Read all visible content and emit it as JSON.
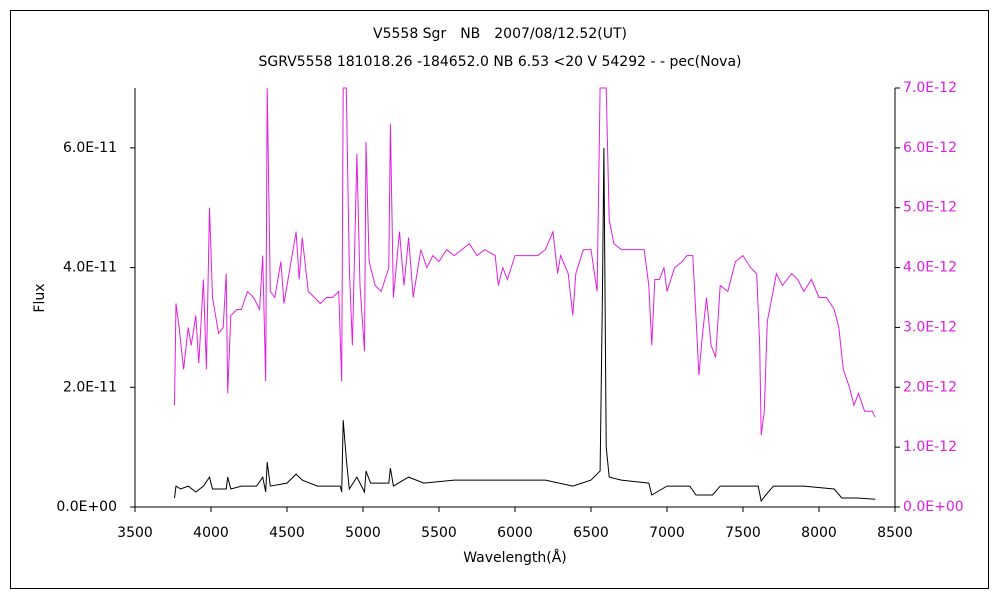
{
  "chart_data": {
    "type": "line",
    "title": "V5558 Sgr　NB　2007/08/12.52(UT)",
    "subtitle": "SGRV5558 181018.26 -184652.0 NB 6.53 <20 V 54292 - - pec(Nova)",
    "x_label": "Wavelength(Å)",
    "y_label": "Flux",
    "xlim": [
      3500,
      8500
    ],
    "xticks": [
      3500,
      4000,
      4500,
      5000,
      5500,
      6000,
      6500,
      7000,
      7500,
      8000,
      8500
    ],
    "ylim": [
      0,
      7e-11
    ],
    "yticks": [
      {
        "value": 0,
        "label": "0.0E+00"
      },
      {
        "value": 2e-11,
        "label": "2.0E-11"
      },
      {
        "value": 4e-11,
        "label": "4.0E-11"
      },
      {
        "value": 6e-11,
        "label": "6.0E-11"
      }
    ],
    "y2lim": [
      0,
      7e-12
    ],
    "y2ticks": [
      {
        "value": 0,
        "label": "0.0E+00"
      },
      {
        "value": 1e-12,
        "label": "1.0E-12"
      },
      {
        "value": 2e-12,
        "label": "2.0E-12"
      },
      {
        "value": 3e-12,
        "label": "3.0E-12"
      },
      {
        "value": 4e-12,
        "label": "4.0E-12"
      },
      {
        "value": 5e-12,
        "label": "5.0E-12"
      },
      {
        "value": 6e-12,
        "label": "6.0E-12"
      },
      {
        "value": 7e-12,
        "label": "7.0E-12"
      }
    ],
    "y2_color": "#e020e0",
    "series": [
      {
        "color": "#e020e0",
        "axis": "y2",
        "x": [
          3760,
          3770,
          3790,
          3820,
          3850,
          3870,
          3900,
          3920,
          3950,
          3970,
          3990,
          4010,
          4050,
          4080,
          4100,
          4110,
          4130,
          4170,
          4200,
          4240,
          4280,
          4320,
          4340,
          4360,
          4370,
          4390,
          4420,
          4460,
          4480,
          4520,
          4560,
          4580,
          4600,
          4640,
          4680,
          4720,
          4760,
          4800,
          4840,
          4860,
          4870,
          4890,
          4910,
          4930,
          4960,
          4980,
          5010,
          5020,
          5040,
          5080,
          5120,
          5170,
          5180,
          5200,
          5240,
          5270,
          5300,
          5330,
          5380,
          5420,
          5460,
          5500,
          5550,
          5600,
          5650,
          5700,
          5750,
          5800,
          5870,
          5890,
          5920,
          5950,
          6000,
          6050,
          6100,
          6150,
          6200,
          6250,
          6280,
          6300,
          6350,
          6380,
          6400,
          6450,
          6500,
          6540,
          6560,
          6600,
          6620,
          6650,
          6700,
          6750,
          6800,
          6850,
          6880,
          6900,
          6920,
          6950,
          6980,
          7000,
          7050,
          7100,
          7130,
          7170,
          7190,
          7210,
          7230,
          7260,
          7290,
          7320,
          7350,
          7400,
          7450,
          7500,
          7550,
          7590,
          7610,
          7620,
          7640,
          7660,
          7690,
          7720,
          7760,
          7790,
          7820,
          7860,
          7900,
          7950,
          8000,
          8050,
          8100,
          8130,
          8160,
          8200,
          8230,
          8260,
          8300,
          8350,
          8370
        ],
        "values": [
          1.7e-12,
          3.4e-12,
          3e-12,
          2.3e-12,
          3e-12,
          2.7e-12,
          3.2e-12,
          2.4e-12,
          3.8e-12,
          2.3e-12,
          5e-12,
          3.5e-12,
          2.9e-12,
          3e-12,
          3.9e-12,
          1.9e-12,
          3.2e-12,
          3.3e-12,
          3.3e-12,
          3.6e-12,
          3.5e-12,
          3.3e-12,
          4.2e-12,
          2.1e-12,
          7e-12,
          3.6e-12,
          3.5e-12,
          4.1e-12,
          3.4e-12,
          4e-12,
          4.6e-12,
          3.8e-12,
          4.5e-12,
          3.6e-12,
          3.5e-12,
          3.4e-12,
          3.5e-12,
          3.5e-12,
          3.6e-12,
          2.1e-12,
          7e-12,
          7e-12,
          4e-12,
          2.7e-12,
          5.9e-12,
          3.7e-12,
          2.6e-12,
          6.1e-12,
          4.1e-12,
          3.7e-12,
          3.6e-12,
          4e-12,
          6.4e-12,
          3.5e-12,
          4.6e-12,
          3.7e-12,
          4.5e-12,
          3.5e-12,
          4.3e-12,
          4e-12,
          4.2e-12,
          4.1e-12,
          4.3e-12,
          4.2e-12,
          4.3e-12,
          4.4e-12,
          4.2e-12,
          4.3e-12,
          4.2e-12,
          3.7e-12,
          4e-12,
          3.8e-12,
          4.2e-12,
          4.2e-12,
          4.2e-12,
          4.2e-12,
          4.3e-12,
          4.6e-12,
          3.9e-12,
          4.2e-12,
          3.9e-12,
          3.2e-12,
          3.9e-12,
          4.3e-12,
          4.3e-12,
          3.6e-12,
          7e-12,
          7e-12,
          4.8e-12,
          4.4e-12,
          4.3e-12,
          4.3e-12,
          4.3e-12,
          4.3e-12,
          3.7e-12,
          2.7e-12,
          3.8e-12,
          3.8e-12,
          4e-12,
          3.6e-12,
          4e-12,
          4.1e-12,
          4.2e-12,
          4.2e-12,
          3.2e-12,
          2.2e-12,
          2.8e-12,
          3.5e-12,
          2.7e-12,
          2.5e-12,
          3.7e-12,
          3.6e-12,
          4.1e-12,
          4.2e-12,
          4e-12,
          3.9e-12,
          2.7e-12,
          1.2e-12,
          1.6e-12,
          3.1e-12,
          3.5e-12,
          3.9e-12,
          3.7e-12,
          3.8e-12,
          3.9e-12,
          3.8e-12,
          3.6e-12,
          3.8e-12,
          3.5e-12,
          3.5e-12,
          3.3e-12,
          3e-12,
          2.3e-12,
          2e-12,
          1.7e-12,
          1.9e-12,
          1.6e-12,
          1.6e-12,
          1.5e-12
        ]
      },
      {
        "color": "#000000",
        "axis": "y",
        "x": [
          3760,
          3770,
          3800,
          3850,
          3900,
          3950,
          3990,
          4010,
          4100,
          4110,
          4130,
          4200,
          4300,
          4340,
          4360,
          4370,
          4390,
          4500,
          4560,
          4600,
          4700,
          4800,
          4850,
          4860,
          4870,
          4890,
          4910,
          4960,
          5010,
          5020,
          5050,
          5170,
          5180,
          5200,
          5300,
          5400,
          5600,
          5800,
          6000,
          6200,
          6380,
          6500,
          6560,
          6575,
          6585,
          6600,
          6620,
          6700,
          6880,
          6900,
          7000,
          7150,
          7190,
          7300,
          7350,
          7500,
          7600,
          7620,
          7650,
          7700,
          7900,
          8100,
          8150,
          8250,
          8370
        ],
        "values": [
          1.5e-12,
          3.5e-12,
          3e-12,
          3.5e-12,
          2.5e-12,
          3.5e-12,
          5e-12,
          3e-12,
          3e-12,
          5e-12,
          3e-12,
          3.5e-12,
          3.5e-12,
          5e-12,
          2.5e-12,
          7.5e-12,
          3.5e-12,
          4e-12,
          5.5e-12,
          4.5e-12,
          3.5e-12,
          3.5e-12,
          3.5e-12,
          2.5e-12,
          1.45e-11,
          8e-12,
          3e-12,
          5e-12,
          2.5e-12,
          6e-12,
          4e-12,
          4e-12,
          6.5e-12,
          3.5e-12,
          5e-12,
          4e-12,
          4.5e-12,
          4.5e-12,
          4.5e-12,
          4.5e-12,
          3.5e-12,
          4.5e-12,
          6e-12,
          3.5e-11,
          6e-11,
          1e-11,
          5e-12,
          4.5e-12,
          4e-12,
          2e-12,
          3.5e-12,
          3.5e-12,
          2e-12,
          2e-12,
          3.5e-12,
          3.5e-12,
          3.5e-12,
          1e-12,
          2e-12,
          3.5e-12,
          3.5e-12,
          3e-12,
          1.5e-12,
          1.5e-12,
          1.3e-12
        ]
      }
    ]
  }
}
